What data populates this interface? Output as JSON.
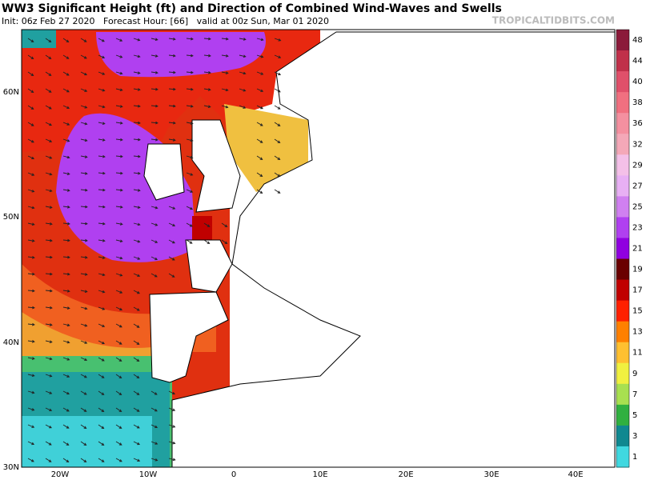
{
  "header": {
    "title": "WW3 Significant Height (ft) and Direction of Combined Wind-Waves and Swells",
    "subtitle": "Init: 06z Feb 27 2020   Forecast Hour: [66]   valid at 00z Sun, Mar 01 2020",
    "watermark": "TROPICALTIDBITS.COM"
  },
  "map": {
    "lat_labels": [
      "60N",
      "50N",
      "40N",
      "30N"
    ],
    "lon_labels": [
      "20W",
      "10W",
      "0",
      "10E",
      "20E",
      "30E",
      "40E"
    ]
  },
  "colorbar": {
    "labels": [
      "48",
      "44",
      "40",
      "38",
      "36",
      "32",
      "29",
      "27",
      "25",
      "23",
      "21",
      "19",
      "17",
      "15",
      "13",
      "11",
      "9",
      "7",
      "5",
      "3",
      "1"
    ],
    "colors": [
      "#8b1a3a",
      "#c0304a",
      "#e0506a",
      "#f07080",
      "#f490a0",
      "#f4a8b8",
      "#f4c0e8",
      "#e8b0f4",
      "#d080f0",
      "#b040f0",
      "#9000e0",
      "#6a0000",
      "#c00000",
      "#ff2000",
      "#ff8000",
      "#ffc030",
      "#f0f040",
      "#a8e050",
      "#30b040",
      "#108890",
      "#40d8e0"
    ]
  }
}
